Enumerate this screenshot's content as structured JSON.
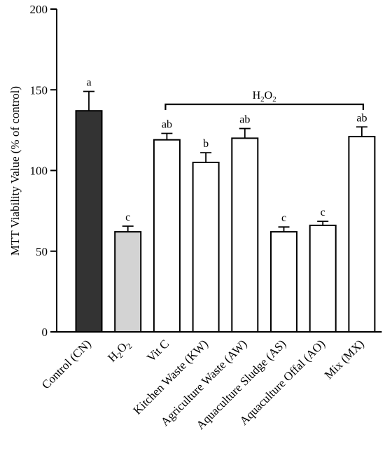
{
  "chart_data": {
    "type": "bar",
    "title": "",
    "ylabel": "MTT Viability Value (% of control)",
    "xlabel": "",
    "ylim": [
      0,
      200
    ],
    "yticks": [
      0,
      50,
      100,
      150,
      200
    ],
    "ytick_labels": [
      "0",
      "50",
      "100",
      "150",
      "200"
    ],
    "categories": [
      {
        "base": "Control (CN)",
        "sub": ""
      },
      {
        "base": "H",
        "sub": "2",
        "tail": "O",
        "sub2": "2"
      },
      {
        "base": "Vit C",
        "sub": ""
      },
      {
        "base": "Kitchen Waste (KW)",
        "sub": ""
      },
      {
        "base": "Agriculture Waste (AW)",
        "sub": ""
      },
      {
        "base": "Aquaculture Sludge (AS)",
        "sub": ""
      },
      {
        "base": "Aquaculture Offal (AO)",
        "sub": ""
      },
      {
        "base": "Mix (MX)",
        "sub": ""
      }
    ],
    "values": [
      137,
      62,
      119,
      105,
      120,
      62,
      66,
      121
    ],
    "errors": [
      12,
      3.5,
      4,
      6,
      6,
      3,
      2.5,
      6
    ],
    "letters": [
      "a",
      "c",
      "ab",
      "b",
      "ab",
      "c",
      "c",
      "ab"
    ],
    "bar_colors": [
      "#333333",
      "#d3d3d3",
      "#ffffff",
      "#ffffff",
      "#ffffff",
      "#ffffff",
      "#ffffff",
      "#ffffff"
    ],
    "bracket": {
      "label_main": "H",
      "label_sub": "2",
      "label_tail": "O",
      "label_sub2": "2",
      "from_index": 2,
      "to_index": 7,
      "level": 141
    }
  }
}
